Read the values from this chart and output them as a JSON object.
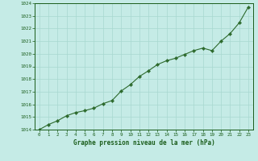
{
  "x": [
    0,
    1,
    2,
    3,
    4,
    5,
    6,
    7,
    8,
    9,
    10,
    11,
    12,
    13,
    14,
    15,
    16,
    17,
    18,
    19,
    20,
    21,
    22,
    23
  ],
  "y": [
    1014.0,
    1014.4,
    1014.7,
    1015.1,
    1015.35,
    1015.5,
    1015.7,
    1016.05,
    1016.3,
    1017.05,
    1017.55,
    1018.2,
    1018.65,
    1019.15,
    1019.45,
    1019.65,
    1019.95,
    1020.25,
    1020.45,
    1020.25,
    1021.0,
    1021.6,
    1022.45,
    1023.7
  ],
  "line_color": "#2d6a2d",
  "marker_color": "#2d6a2d",
  "bg_color": "#c5ebe6",
  "grid_color": "#a8d8d0",
  "xlabel": "Graphe pression niveau de la mer (hPa)",
  "xlabel_color": "#1a5c1a",
  "tick_color": "#1a5c1a",
  "ylim": [
    1014,
    1024
  ],
  "xlim_min": -0.5,
  "xlim_max": 23.5,
  "yticks": [
    1014,
    1015,
    1016,
    1017,
    1018,
    1019,
    1020,
    1021,
    1022,
    1023,
    1024
  ],
  "xticks": [
    0,
    1,
    2,
    3,
    4,
    5,
    6,
    7,
    8,
    9,
    10,
    11,
    12,
    13,
    14,
    15,
    16,
    17,
    18,
    19,
    20,
    21,
    22,
    23
  ]
}
